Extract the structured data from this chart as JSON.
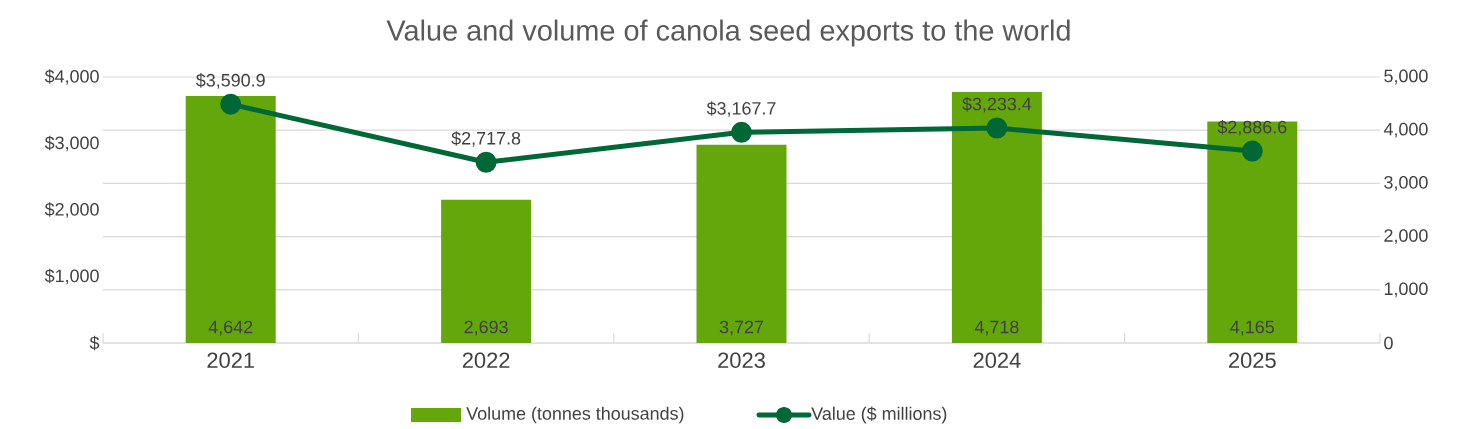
{
  "chart_data": {
    "type": "bar",
    "title": "Value and volume of canola seed exports to the world",
    "categories": [
      "2021",
      "2022",
      "2023",
      "2024",
      "2025"
    ],
    "series": [
      {
        "name": "Volume (tonnes thousands)",
        "axis": "y2",
        "color": "#64a70b",
        "values": [
          4642,
          2693,
          3727,
          4718,
          4165
        ],
        "value_labels": [
          "4,642",
          "2,693",
          "3,727",
          "4,718",
          "4,165"
        ]
      },
      {
        "name": "Value ($ millions)",
        "type": "line",
        "color": "#006837",
        "values": [
          3590.9,
          2717.8,
          3167.7,
          3233.4,
          2886.6
        ],
        "value_labels": [
          "$3,590.9",
          "$2,717.8",
          "$3,167.7",
          "$3,233.4",
          "$2,886.6"
        ]
      }
    ],
    "ylim": [
      0,
      4000
    ],
    "yticks": [
      {
        "value": 0,
        "label": "$"
      },
      {
        "value": 1000,
        "label": "$1,000"
      },
      {
        "value": 2000,
        "label": "$2,000"
      },
      {
        "value": 3000,
        "label": "$3,000"
      },
      {
        "value": 4000,
        "label": "$4,000"
      }
    ],
    "y2lim": [
      0,
      5000
    ],
    "y2ticks": [
      0,
      {
        "value": 1000,
        "label": "1,000"
      },
      {
        "value": 2000,
        "label": "2,000"
      },
      {
        "value": 3000,
        "label": "3,000"
      },
      {
        "value": 4000,
        "label": "4,000"
      },
      {
        "value": 5000,
        "label": "5,000"
      }
    ],
    "grid": "y2",
    "legend": "bottom",
    "marker": "circle",
    "line_style": "solid"
  }
}
